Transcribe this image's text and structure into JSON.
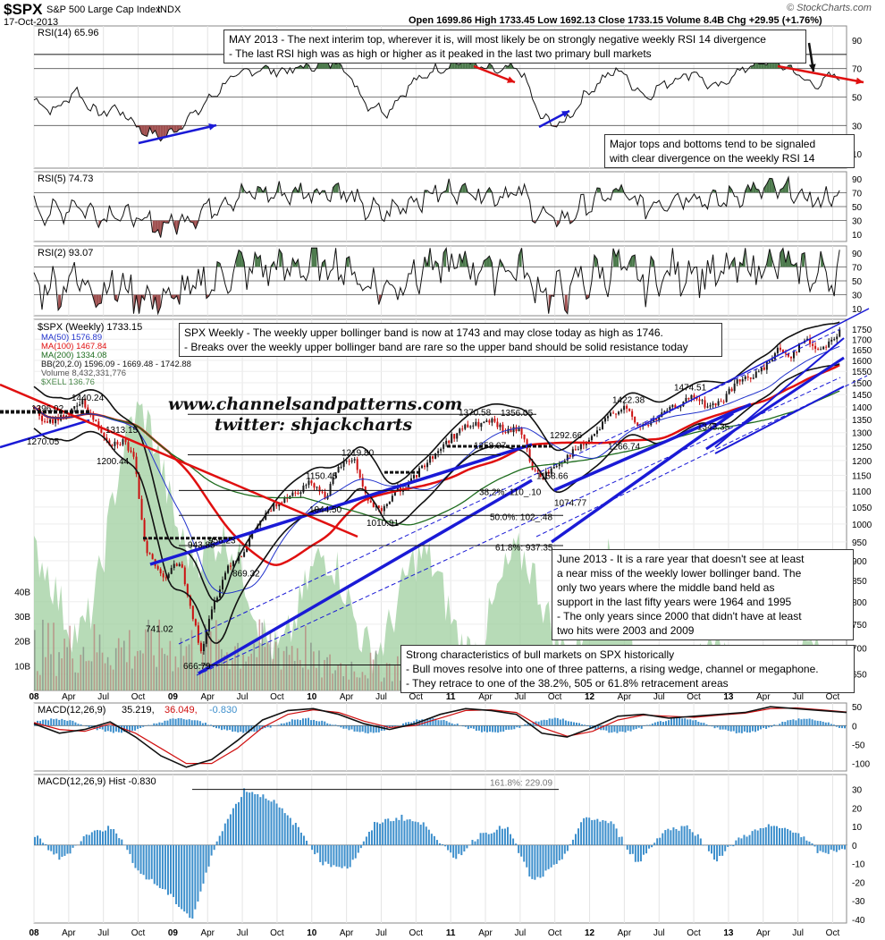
{
  "header": {
    "symbol": "$SPX",
    "name": "S&P 500 Large Cap Index",
    "exchange": "INDX",
    "date": "17-Oct-2013",
    "ohlc": "Open 1699.86  High 1733.45  Low 1692.13  Close 1733.15  Volume 8.4B  Chg +29.95 (+1.76%)",
    "chg_direction": "up",
    "copyright": "© StockCharts.com"
  },
  "colors": {
    "blue_line": "#1a1ad6",
    "red_ma": "#e01010",
    "green_ma": "#1f6d1f",
    "volume_fill": "#9fcf9f",
    "rsi_fill_green": "#4c7a4c",
    "rsi_fill_red": "#a05050",
    "macd_hist": "#3d8fcc",
    "up_candle": "#1a1a1a",
    "down_candle": "#cc1010"
  },
  "watermark": {
    "line1": "www.channelsandpatterns.com",
    "line2": "twitter: shjackcharts"
  },
  "notes": {
    "may2013": [
      "MAY 2013 - The next interim top, wherever it is, will most likely be on strongly negative weekly RSI 14 divergence",
      "- The last RSI high was as high or higher as it peaked in the last two primary bull markets"
    ],
    "major_tops": [
      "Major tops and bottoms tend to be signaled",
      "with clear divergence on the weekly RSI 14"
    ],
    "weekly": [
      "SPX Weekly - The weekly upper bollinger band is now at 1743 and may close today as high as 1746.",
      "- Breaks over the weekly upper bollinger band are rare so the upper band should be solid resistance today"
    ],
    "june2013": [
      "June 2013 - It is a rare year that doesn't see at least",
      "a near miss of the weekly lower bollinger band. The",
      "only two years where the middle band held as",
      "support in the last fifty years were 1964 and 1995",
      "- The only years since 2000 that didn't have at least",
      "two hits were 2003 and 2009"
    ],
    "bull": [
      "Strong characteristics of bull markets on SPX historically",
      "- Bull moves resolve into one of three patterns, a rising wedge, channel or megaphone.",
      "- They retrace to one of the 38.2%, 505 or 61.8% retracement areas"
    ]
  },
  "chart_data": [
    {
      "type": "line",
      "title": "RSI(14) 65.96",
      "ylim": [
        0,
        100
      ],
      "ticks": [
        10,
        30,
        50,
        70,
        90
      ],
      "tick_labels": [
        "10",
        "30",
        "50",
        "70",
        "90"
      ],
      "reference_lines": [
        30,
        50,
        70
      ],
      "x": [
        2008.0,
        2008.15,
        2008.3,
        2008.45,
        2008.6,
        2008.8,
        2008.95,
        2009.2,
        2009.4,
        2009.6,
        2009.8,
        2010.0,
        2010.2,
        2010.4,
        2010.55,
        2010.7,
        2010.9,
        2011.1,
        2011.3,
        2011.5,
        2011.65,
        2011.8,
        2012.0,
        2012.2,
        2012.4,
        2012.55,
        2012.75,
        2012.9,
        2013.1,
        2013.3,
        2013.45,
        2013.6,
        2013.8
      ],
      "values": [
        48,
        40,
        55,
        38,
        42,
        25,
        22,
        42,
        62,
        70,
        68,
        72,
        75,
        45,
        40,
        58,
        70,
        75,
        68,
        70,
        35,
        30,
        55,
        70,
        50,
        60,
        68,
        55,
        70,
        75,
        70,
        58,
        66
      ],
      "annotations": [
        "MAY 2013 - The next interim top, wherever it is, will most likely be on strongly negative weekly RSI 14 divergence"
      ]
    },
    {
      "type": "line",
      "title": "RSI(5) 74.73",
      "ylim": [
        0,
        100
      ],
      "ticks": [
        10,
        30,
        50,
        70,
        90
      ],
      "tick_labels": [
        "10",
        "30",
        "50",
        "70",
        "90"
      ],
      "reference_lines": [
        30,
        50,
        70
      ]
    },
    {
      "type": "line",
      "title": "RSI(2) 93.07",
      "ylim": [
        0,
        100
      ],
      "ticks": [
        10,
        30,
        50,
        70,
        90
      ],
      "tick_labels": [
        "10",
        "30",
        "50",
        "70",
        "90"
      ],
      "reference_lines": [
        30,
        50,
        70
      ]
    },
    {
      "type": "line",
      "title": "$SPX (Weekly) 1733.15",
      "yscale": "log",
      "ylim": [
        620,
        1800
      ],
      "ticks": [
        650,
        700,
        750,
        800,
        850,
        900,
        950,
        1000,
        1050,
        1100,
        1150,
        1200,
        1250,
        1300,
        1350,
        1400,
        1450,
        1500,
        1550,
        1600,
        1650,
        1700,
        1750
      ],
      "tick_labels": [
        "650",
        "700",
        "750",
        "800",
        "850",
        "900",
        "950",
        "1000",
        "1050",
        "1100",
        "1150",
        "1200",
        "1250",
        "1300",
        "1350",
        "1400",
        "1450",
        "1500",
        "1550",
        "1600",
        "1650",
        "1700",
        "1750"
      ],
      "volume_ticks": [
        10,
        20,
        30,
        40
      ],
      "volume_tick_labels": [
        "10B",
        "20B",
        "30B",
        "40B"
      ],
      "legend": [
        "MA(50) 1576.89",
        "MA(100) 1467.84",
        "MA(200) 1334.08",
        "BB(20,2.0) 1596.09 - 1669.48 - 1742.88",
        "Volume 8,432,331,776",
        "$XELL 136.76"
      ],
      "series": [
        {
          "name": "$SPX (Weekly) 1733.15",
          "x": [
            2008.0,
            2008.08,
            2008.15,
            2008.25,
            2008.35,
            2008.45,
            2008.55,
            2008.65,
            2008.72,
            2008.8,
            2008.88,
            2008.95,
            2009.05,
            2009.15,
            2009.2,
            2009.3,
            2009.4,
            2009.5,
            2009.6,
            2009.7,
            2009.8,
            2009.9,
            2010.0,
            2010.1,
            2010.2,
            2010.3,
            2010.4,
            2010.5,
            2010.6,
            2010.7,
            2010.8,
            2010.9,
            2011.0,
            2011.1,
            2011.2,
            2011.3,
            2011.4,
            2011.5,
            2011.58,
            2011.65,
            2011.75,
            2011.85,
            2011.95,
            2012.05,
            2012.15,
            2012.25,
            2012.35,
            2012.45,
            2012.55,
            2012.65,
            2012.75,
            2012.85,
            2012.95,
            2013.05,
            2013.15,
            2013.25,
            2013.35,
            2013.45,
            2013.55,
            2013.65,
            2013.75,
            2013.8
          ],
          "values": [
            1400,
            1330,
            1350,
            1370,
            1420,
            1330,
            1260,
            1270,
            1200,
            940,
            880,
            860,
            900,
            760,
            690,
            800,
            890,
            920,
            990,
            1040,
            1080,
            1100,
            1130,
            1080,
            1180,
            1210,
            1070,
            1030,
            1100,
            1120,
            1180,
            1230,
            1280,
            1320,
            1330,
            1340,
            1300,
            1320,
            1180,
            1140,
            1180,
            1220,
            1250,
            1300,
            1370,
            1400,
            1320,
            1340,
            1380,
            1410,
            1440,
            1400,
            1420,
            1500,
            1520,
            1560,
            1650,
            1620,
            1700,
            1650,
            1700,
            1733
          ]
        }
      ],
      "labels": [
        "1440.24",
        "1396.02",
        "1313.15",
        "1270.05",
        "1200.44",
        "943.85",
        "956.23",
        "869.32",
        "741.02",
        "666.79",
        "1219.80",
        "1150.45",
        "1044.50",
        "1010.91",
        "1370.58",
        "1356.05",
        "1258.07",
        "1158.66",
        "1074.77",
        "1292.66",
        "1422.38",
        "1266.74",
        "1474.51",
        "1343.35",
        "38.2%: 110_.10",
        "50.0%: 102_.48",
        "61.8%: 937.35"
      ]
    },
    {
      "type": "line",
      "title": "MACD(12,26,9) 35.219, 36.049, -0.830",
      "ylim": [
        -120,
        60
      ],
      "ticks": [
        -100,
        -50,
        0,
        50
      ],
      "tick_labels": [
        "-100",
        "-50",
        "0",
        "50"
      ],
      "series": [
        {
          "name": "MACD(12,26,9) 35.219",
          "values": [
            5,
            -20,
            -10,
            10,
            -30,
            -80,
            -110,
            -90,
            -40,
            15,
            40,
            45,
            30,
            5,
            -10,
            5,
            30,
            45,
            40,
            30,
            -20,
            -30,
            -5,
            25,
            30,
            20,
            25,
            30,
            35,
            50,
            45,
            40,
            35
          ]
        },
        {
          "name": "36.049",
          "values": [
            8,
            -10,
            -15,
            5,
            -20,
            -60,
            -100,
            -100,
            -60,
            -5,
            30,
            42,
            35,
            12,
            -5,
            0,
            20,
            40,
            42,
            35,
            -5,
            -28,
            -15,
            15,
            28,
            25,
            22,
            28,
            33,
            45,
            47,
            42,
            36
          ]
        }
      ]
    },
    {
      "type": "bar",
      "title": "MACD(12,26,9) Hist -0.830",
      "ylim": [
        -42,
        38
      ],
      "ticks": [
        -40,
        -30,
        -20,
        -10,
        0,
        10,
        20,
        30
      ],
      "tick_labels": [
        "-40",
        "-30",
        "-20",
        "-10",
        "0",
        "10",
        "20",
        "30"
      ],
      "fib_level": "161.8%: 229.09",
      "values": [
        5,
        -8,
        6,
        10,
        -15,
        -25,
        -40,
        5,
        30,
        25,
        10,
        -10,
        -12,
        12,
        15,
        10,
        -8,
        6,
        10,
        -20,
        -10,
        15,
        12,
        -10,
        8,
        10,
        -8,
        5,
        10,
        8,
        -5,
        -1
      ]
    }
  ],
  "x_axis": {
    "labels": [
      "08",
      "Apr",
      "Jul",
      "Oct",
      "09",
      "Apr",
      "Jul",
      "Oct",
      "10",
      "Apr",
      "Jul",
      "Oct",
      "11",
      "Apr",
      "Jul",
      "Oct",
      "12",
      "Apr",
      "Jul",
      "Oct",
      "13",
      "Apr",
      "Jul",
      "Oct"
    ],
    "x": [
      2008.0,
      2008.25,
      2008.5,
      2008.75,
      2009.0,
      2009.25,
      2009.5,
      2009.75,
      2010.0,
      2010.25,
      2010.5,
      2010.75,
      2011.0,
      2011.25,
      2011.5,
      2011.75,
      2012.0,
      2012.25,
      2012.5,
      2012.75,
      2013.0,
      2013.25,
      2013.5,
      2013.75
    ]
  }
}
